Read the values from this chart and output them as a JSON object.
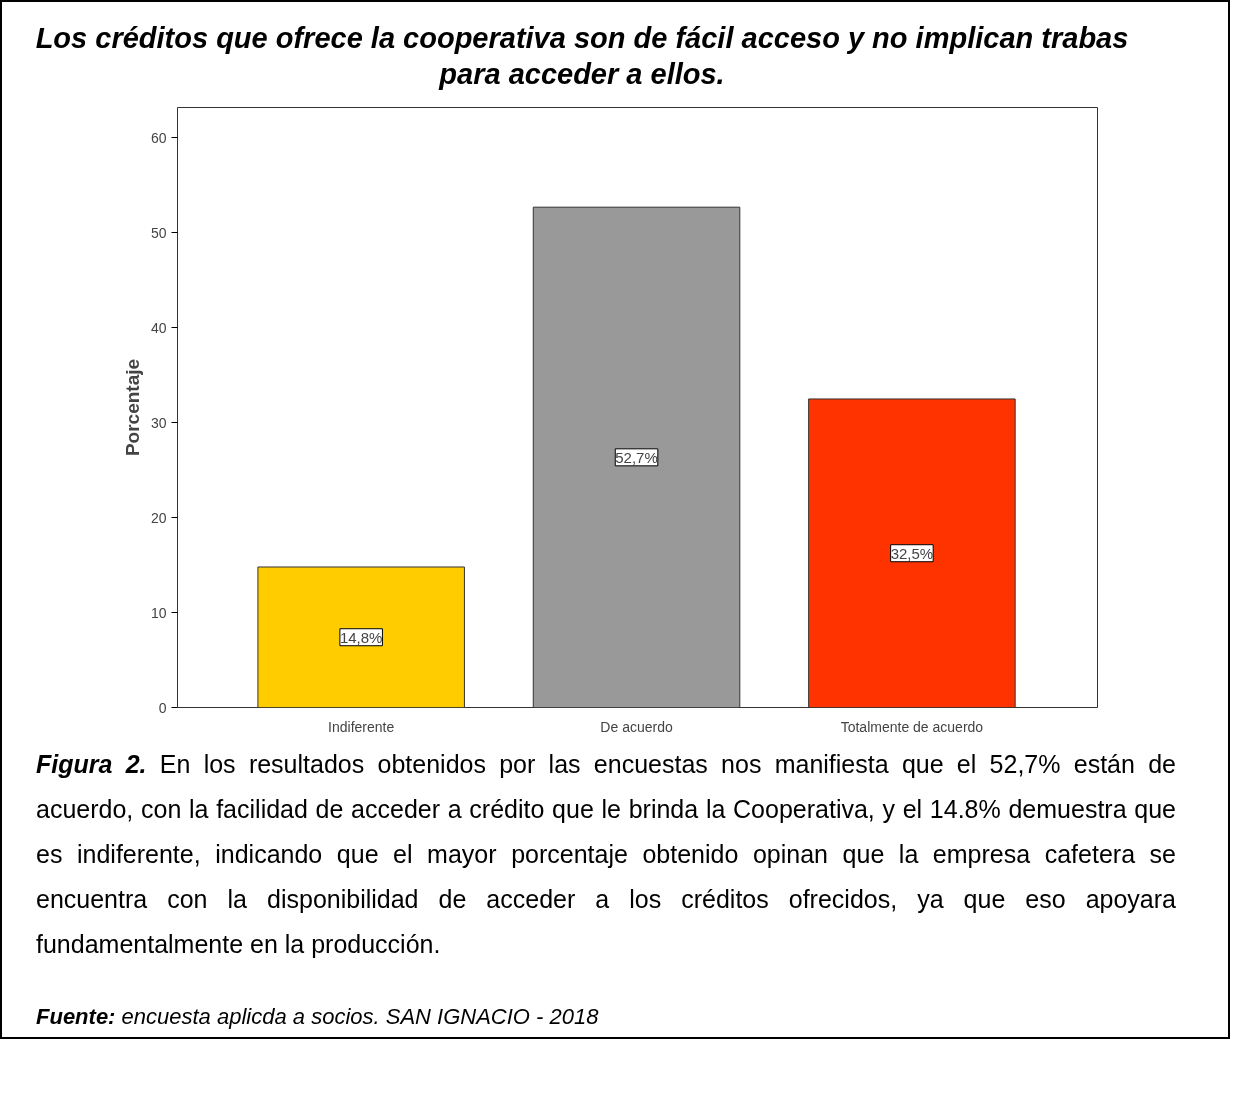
{
  "chart_data": {
    "type": "bar",
    "title": "Los créditos que ofrece la cooperativa son de fácil acceso y no implican trabas para acceder a ellos.",
    "ylabel": "Porcentaje",
    "categories": [
      "Indiferente",
      "De acuerdo",
      "Totalmente de acuerdo"
    ],
    "values": [
      14.8,
      52.7,
      32.5
    ],
    "colors": [
      "#ffcc00",
      "#999999",
      "#ff3300"
    ],
    "value_labels": [
      "14,8%",
      "52,7%",
      "32,5%"
    ],
    "ylim": [
      0,
      63.2
    ],
    "yticks": [
      0,
      10,
      20,
      30,
      40,
      50,
      60
    ],
    "grid": false,
    "annotations": [
      "Figura 2. En los resultados obtenidos por las encuestas nos manifiesta que el 52,7% están de acuerdo, con la facilidad de acceder a crédito que le brinda la Cooperativa, y el 14.8% demuestra que es indiferente, indicando que el mayor porcentaje obtenido opinan que la empresa cafetera se encuentra con la disponibilidad de acceder a los créditos ofrecidos, ya que eso apoyara fundamentalmente en la producción.",
      "Fuente: encuesta aplicda a socios. SAN IGNACIO - 2018"
    ]
  }
}
